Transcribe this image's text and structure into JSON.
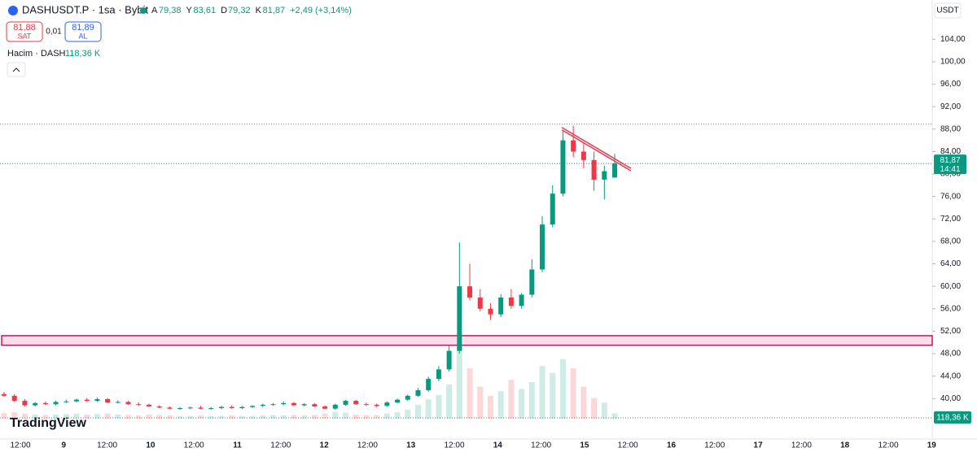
{
  "header": {
    "symbol": "DASHUSDT.P · 1sa · Bybit",
    "ohlc": [
      {
        "key": "A",
        "value": "79,38"
      },
      {
        "key": "Y",
        "value": "83,61"
      },
      {
        "key": "D",
        "value": "79,32"
      },
      {
        "key": "K",
        "value": "81,87"
      }
    ],
    "change": "+2,49 (+3,14%)",
    "sell_price": "81,88",
    "sell_label": "SAT",
    "spread": "0,01",
    "buy_price": "81,89",
    "buy_label": "AL",
    "volume_label": "Hacim · DASH",
    "volume_value": "118,36 K",
    "currency": "USDT",
    "logo": "TradingView"
  },
  "chart_data": {
    "type": "candlestick",
    "up_color": "#089981",
    "down_color": "#f23645",
    "open": [
      40.8,
      40.5,
      39.6,
      38.8,
      39.2,
      39.0,
      39.4,
      39.5,
      39.8,
      39.6,
      39.9,
      39.3,
      39.4,
      39.0,
      38.9,
      38.6,
      38.4,
      38.2,
      38.3,
      38.4,
      38.2,
      38.3,
      38.5,
      38.3,
      38.5,
      38.7,
      38.9,
      39.0,
      39.2,
      38.8,
      39.0,
      38.6,
      38.2,
      38.9,
      39.6,
      39.0,
      38.9,
      38.7,
      39.3,
      39.8,
      40.5,
      41.5,
      43.5,
      45.2,
      48.5,
      60.0,
      58.0,
      56.0,
      55.0,
      58.0,
      56.5,
      58.5,
      63.0,
      71.0,
      76.5,
      86.0,
      84.0,
      82.5,
      79.0,
      79.38
    ],
    "high": [
      41.2,
      40.8,
      39.9,
      39.4,
      39.5,
      39.6,
      39.8,
      40.0,
      40.1,
      40.2,
      40.1,
      39.7,
      39.6,
      39.3,
      39.1,
      38.8,
      38.6,
      38.5,
      38.6,
      38.7,
      38.5,
      38.7,
      38.8,
      38.7,
      38.8,
      39.1,
      39.2,
      39.5,
      39.4,
      39.2,
      39.2,
      38.8,
      39.1,
      39.8,
      39.8,
      39.3,
      39.1,
      39.5,
      40.0,
      40.7,
      41.9,
      43.9,
      45.8,
      49.5,
      67.8,
      64.0,
      59.5,
      57.0,
      58.6,
      59.5,
      58.8,
      64.8,
      72.5,
      78.0,
      87.6,
      88.6,
      85.5,
      84.0,
      81.5,
      83.61
    ],
    "low": [
      40.3,
      39.4,
      38.6,
      38.6,
      38.8,
      38.8,
      39.2,
      39.3,
      39.4,
      39.4,
      39.2,
      39.1,
      38.9,
      38.7,
      38.5,
      38.3,
      38.1,
      38.0,
      38.1,
      38.1,
      38.0,
      38.1,
      38.2,
      38.1,
      38.3,
      38.5,
      38.7,
      38.8,
      38.7,
      38.6,
      38.5,
      38.1,
      38.0,
      38.7,
      38.9,
      38.7,
      38.5,
      38.5,
      39.1,
      39.6,
      40.3,
      41.2,
      43.1,
      44.8,
      48.0,
      57.5,
      55.5,
      54.0,
      54.5,
      56.0,
      56.0,
      58.0,
      62.5,
      70.5,
      76.0,
      83.0,
      81.0,
      77.0,
      75.5,
      79.32
    ],
    "close": [
      40.5,
      39.6,
      38.8,
      39.2,
      39.0,
      39.4,
      39.5,
      39.8,
      39.6,
      39.9,
      39.3,
      39.4,
      39.0,
      38.9,
      38.6,
      38.4,
      38.2,
      38.3,
      38.4,
      38.2,
      38.3,
      38.5,
      38.3,
      38.5,
      38.7,
      38.9,
      39.0,
      39.2,
      38.8,
      39.0,
      38.6,
      38.2,
      38.9,
      39.6,
      39.0,
      38.9,
      38.7,
      39.3,
      39.8,
      40.5,
      41.5,
      43.5,
      45.2,
      48.5,
      60.0,
      58.0,
      56.0,
      55.0,
      58.0,
      56.5,
      58.5,
      63.0,
      71.0,
      76.5,
      86.0,
      84.0,
      82.5,
      79.0,
      80.5,
      81.87
    ],
    "volume": [
      120,
      140,
      110,
      90,
      80,
      90,
      100,
      110,
      90,
      100,
      110,
      90,
      80,
      70,
      90,
      80,
      70,
      60,
      60,
      70,
      60,
      60,
      70,
      60,
      60,
      70,
      80,
      70,
      80,
      70,
      80,
      110,
      150,
      130,
      90,
      80,
      80,
      110,
      140,
      200,
      300,
      420,
      520,
      750,
      1600,
      1100,
      700,
      500,
      600,
      850,
      650,
      800,
      1150,
      1000,
      1300,
      1100,
      700,
      450,
      350,
      118.36
    ],
    "ylim": [
      32.8,
      111
    ],
    "yticks": [
      {
        "value": 40,
        "label": "40,00"
      },
      {
        "value": 44,
        "label": "44,00"
      },
      {
        "value": 48,
        "label": "48,00"
      },
      {
        "value": 52,
        "label": "52,00"
      },
      {
        "value": 56,
        "label": "56,00"
      },
      {
        "value": 60,
        "label": "60,00"
      },
      {
        "value": 64,
        "label": "64,00"
      },
      {
        "value": 68,
        "label": "68,00"
      },
      {
        "value": 72,
        "label": "72,00"
      },
      {
        "value": 76,
        "label": "76,00"
      },
      {
        "value": 80,
        "label": "80,00"
      },
      {
        "value": 84,
        "label": "84,00"
      },
      {
        "value": 88,
        "label": "88,00"
      },
      {
        "value": 92,
        "label": "92,00"
      },
      {
        "value": 96,
        "label": "96,00"
      },
      {
        "value": 100,
        "label": "100,00"
      },
      {
        "value": 104,
        "label": "104,00"
      }
    ],
    "xticks": [
      "12:00",
      "9",
      "12:00",
      "10",
      "12:00",
      "11",
      "12:00",
      "12",
      "12:00",
      "13",
      "12:00",
      "14",
      "12:00",
      "15",
      "12:00",
      "16",
      "12:00",
      "17",
      "12:00",
      "18",
      "12:00",
      "19"
    ],
    "last_price": {
      "value": 81.87,
      "label": "81,87",
      "countdown": "14:41"
    },
    "high_line": 88.9,
    "zone": [
      49.5,
      51.2
    ],
    "trendline": [
      88.3,
      81.0
    ]
  }
}
